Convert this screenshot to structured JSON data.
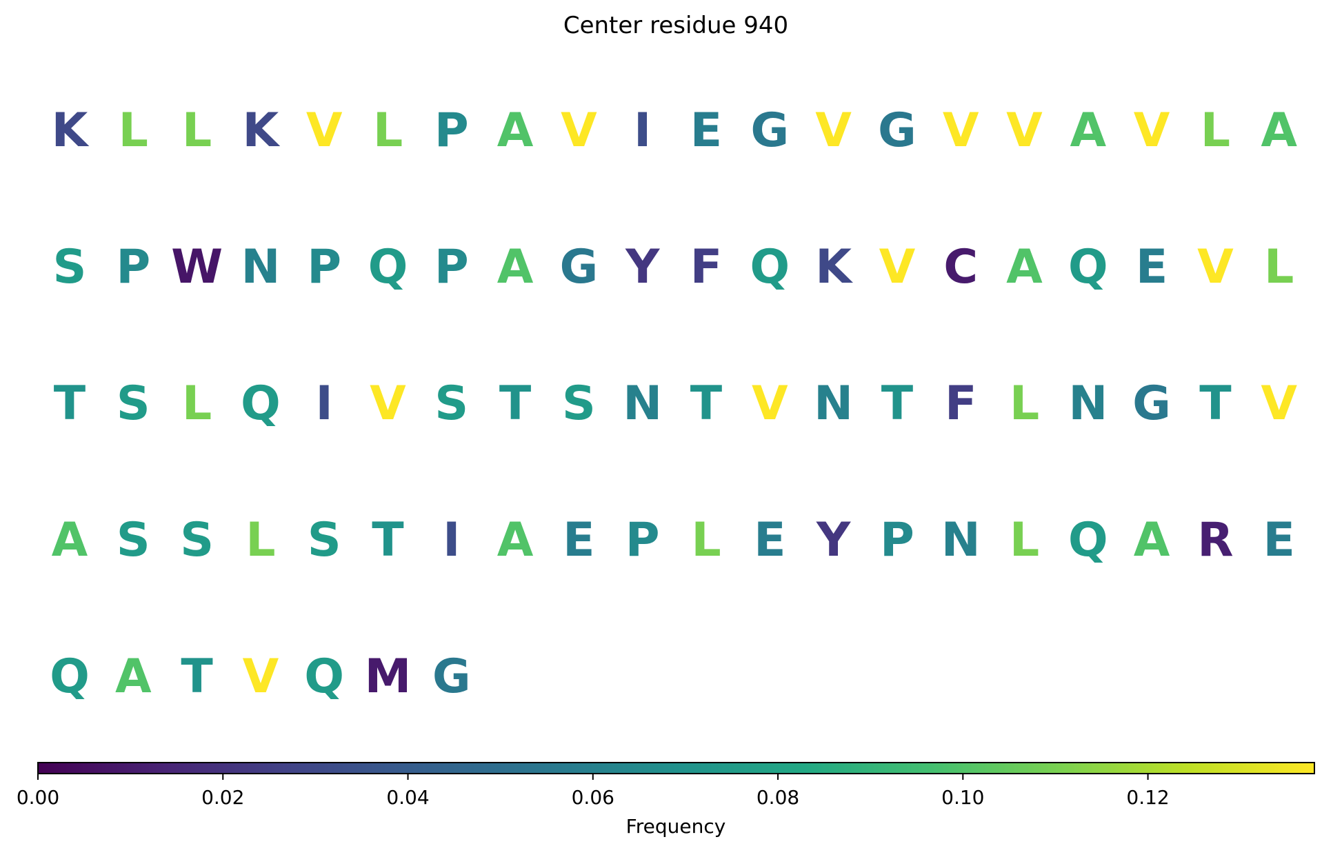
{
  "chart_data": {
    "type": "sequence_logo_heatmap",
    "title": "Center residue 940",
    "colormap": "viridis",
    "colorbar": {
      "label": "Frequency",
      "range": [
        0.0,
        0.138
      ],
      "ticks": [
        0.0,
        0.02,
        0.04,
        0.06,
        0.08,
        0.1,
        0.12
      ],
      "tick_labels": [
        "0.00",
        "0.02",
        "0.04",
        "0.06",
        "0.08",
        "0.10",
        "0.12"
      ],
      "orientation": "horizontal"
    },
    "residues_per_row": 20,
    "residues": [
      {
        "aa": "K",
        "frequency": 0.03
      },
      {
        "aa": "L",
        "frequency": 0.11
      },
      {
        "aa": "L",
        "frequency": 0.11
      },
      {
        "aa": "K",
        "frequency": 0.03
      },
      {
        "aa": "V",
        "frequency": 0.138
      },
      {
        "aa": "L",
        "frequency": 0.11
      },
      {
        "aa": "P",
        "frequency": 0.065
      },
      {
        "aa": "A",
        "frequency": 0.1
      },
      {
        "aa": "V",
        "frequency": 0.138
      },
      {
        "aa": "I",
        "frequency": 0.032
      },
      {
        "aa": "E",
        "frequency": 0.058
      },
      {
        "aa": "G",
        "frequency": 0.055
      },
      {
        "aa": "V",
        "frequency": 0.138
      },
      {
        "aa": "G",
        "frequency": 0.055
      },
      {
        "aa": "V",
        "frequency": 0.138
      },
      {
        "aa": "V",
        "frequency": 0.138
      },
      {
        "aa": "A",
        "frequency": 0.1
      },
      {
        "aa": "V",
        "frequency": 0.138
      },
      {
        "aa": "L",
        "frequency": 0.11
      },
      {
        "aa": "A",
        "frequency": 0.1
      },
      {
        "aa": "S",
        "frequency": 0.075
      },
      {
        "aa": "P",
        "frequency": 0.065
      },
      {
        "aa": "W",
        "frequency": 0.008
      },
      {
        "aa": "N",
        "frequency": 0.06
      },
      {
        "aa": "P",
        "frequency": 0.065
      },
      {
        "aa": "Q",
        "frequency": 0.075
      },
      {
        "aa": "P",
        "frequency": 0.065
      },
      {
        "aa": "A",
        "frequency": 0.1
      },
      {
        "aa": "G",
        "frequency": 0.055
      },
      {
        "aa": "Y",
        "frequency": 0.022
      },
      {
        "aa": "F",
        "frequency": 0.025
      },
      {
        "aa": "Q",
        "frequency": 0.075
      },
      {
        "aa": "K",
        "frequency": 0.03
      },
      {
        "aa": "V",
        "frequency": 0.138
      },
      {
        "aa": "C",
        "frequency": 0.01
      },
      {
        "aa": "A",
        "frequency": 0.1
      },
      {
        "aa": "Q",
        "frequency": 0.075
      },
      {
        "aa": "E",
        "frequency": 0.058
      },
      {
        "aa": "V",
        "frequency": 0.138
      },
      {
        "aa": "L",
        "frequency": 0.11
      },
      {
        "aa": "T",
        "frequency": 0.07
      },
      {
        "aa": "S",
        "frequency": 0.075
      },
      {
        "aa": "L",
        "frequency": 0.11
      },
      {
        "aa": "Q",
        "frequency": 0.075
      },
      {
        "aa": "I",
        "frequency": 0.032
      },
      {
        "aa": "V",
        "frequency": 0.138
      },
      {
        "aa": "S",
        "frequency": 0.075
      },
      {
        "aa": "T",
        "frequency": 0.07
      },
      {
        "aa": "S",
        "frequency": 0.075
      },
      {
        "aa": "N",
        "frequency": 0.06
      },
      {
        "aa": "T",
        "frequency": 0.07
      },
      {
        "aa": "V",
        "frequency": 0.138
      },
      {
        "aa": "N",
        "frequency": 0.06
      },
      {
        "aa": "T",
        "frequency": 0.07
      },
      {
        "aa": "F",
        "frequency": 0.025
      },
      {
        "aa": "L",
        "frequency": 0.11
      },
      {
        "aa": "N",
        "frequency": 0.06
      },
      {
        "aa": "G",
        "frequency": 0.055
      },
      {
        "aa": "T",
        "frequency": 0.07
      },
      {
        "aa": "V",
        "frequency": 0.138
      },
      {
        "aa": "A",
        "frequency": 0.1
      },
      {
        "aa": "S",
        "frequency": 0.075
      },
      {
        "aa": "S",
        "frequency": 0.075
      },
      {
        "aa": "L",
        "frequency": 0.11
      },
      {
        "aa": "S",
        "frequency": 0.075
      },
      {
        "aa": "T",
        "frequency": 0.07
      },
      {
        "aa": "I",
        "frequency": 0.032
      },
      {
        "aa": "A",
        "frequency": 0.1
      },
      {
        "aa": "E",
        "frequency": 0.058
      },
      {
        "aa": "P",
        "frequency": 0.065
      },
      {
        "aa": "L",
        "frequency": 0.11
      },
      {
        "aa": "E",
        "frequency": 0.058
      },
      {
        "aa": "Y",
        "frequency": 0.022
      },
      {
        "aa": "P",
        "frequency": 0.065
      },
      {
        "aa": "N",
        "frequency": 0.06
      },
      {
        "aa": "L",
        "frequency": 0.11
      },
      {
        "aa": "Q",
        "frequency": 0.075
      },
      {
        "aa": "A",
        "frequency": 0.1
      },
      {
        "aa": "R",
        "frequency": 0.012
      },
      {
        "aa": "E",
        "frequency": 0.058
      },
      {
        "aa": "Q",
        "frequency": 0.075
      },
      {
        "aa": "A",
        "frequency": 0.1
      },
      {
        "aa": "T",
        "frequency": 0.07
      },
      {
        "aa": "V",
        "frequency": 0.138
      },
      {
        "aa": "Q",
        "frequency": 0.075
      },
      {
        "aa": "M",
        "frequency": 0.01
      },
      {
        "aa": "G",
        "frequency": 0.055
      }
    ]
  }
}
